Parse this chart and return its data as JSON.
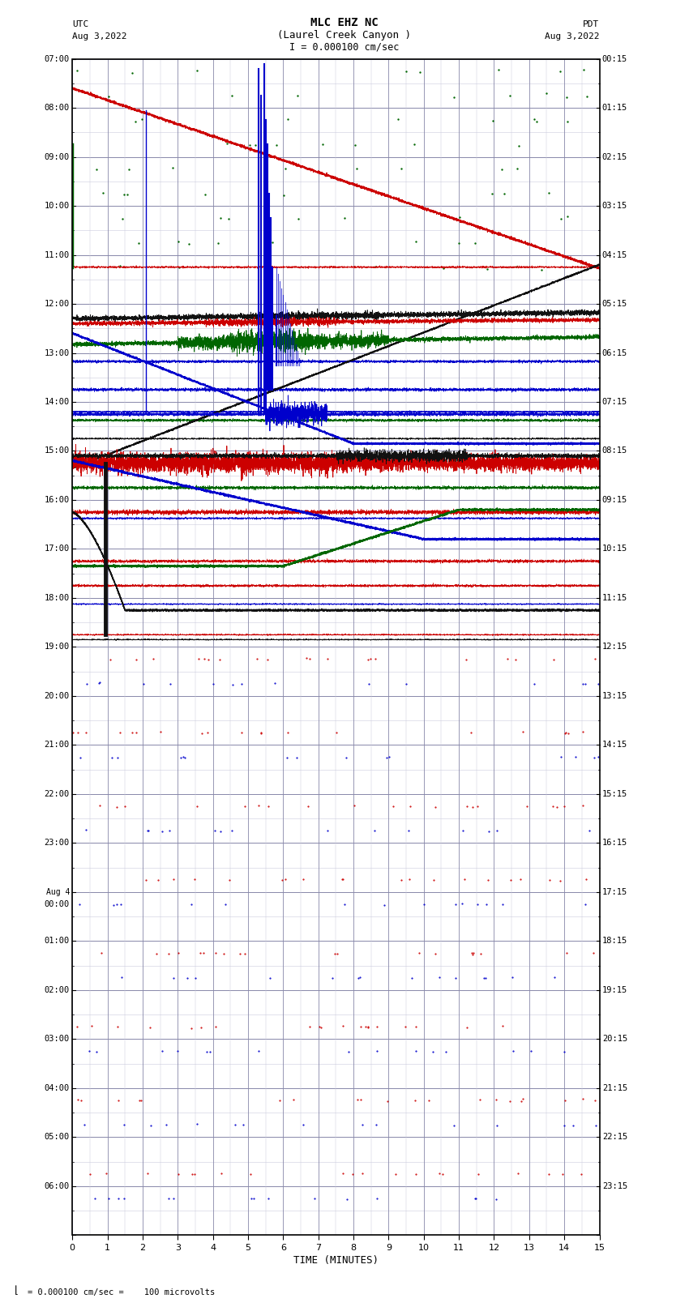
{
  "title_line1": "MLC EHZ NC",
  "title_line2": "(Laurel Creek Canyon )",
  "scale_label": "I = 0.000100 cm/sec",
  "utc_label": "UTC",
  "utc_date": "Aug 3,2022",
  "pdt_label": "PDT",
  "pdt_date": "Aug 3,2022",
  "xlabel": "TIME (MINUTES)",
  "footnote": "= 0.000100 cm/sec =    100 microvolts",
  "xlim": [
    0,
    15
  ],
  "left_times": [
    "07:00",
    "",
    "08:00",
    "",
    "09:00",
    "",
    "10:00",
    "",
    "11:00",
    "",
    "12:00",
    "",
    "13:00",
    "",
    "14:00",
    "",
    "15:00",
    "",
    "16:00",
    "",
    "17:00",
    "",
    "18:00",
    "",
    "19:00",
    "",
    "20:00",
    "",
    "21:00",
    "",
    "22:00",
    "",
    "23:00",
    "",
    "Aug 4\n00:00",
    "",
    "01:00",
    "",
    "02:00",
    "",
    "03:00",
    "",
    "04:00",
    "",
    "05:00",
    "",
    "06:00",
    ""
  ],
  "right_times": [
    "00:15",
    "",
    "01:15",
    "",
    "02:15",
    "",
    "03:15",
    "",
    "04:15",
    "",
    "05:15",
    "",
    "06:15",
    "",
    "07:15",
    "",
    "08:15",
    "",
    "09:15",
    "",
    "10:15",
    "",
    "11:15",
    "",
    "12:15",
    "",
    "13:15",
    "",
    "14:15",
    "",
    "15:15",
    "",
    "16:15",
    "",
    "17:15",
    "",
    "18:15",
    "",
    "19:15",
    "",
    "20:15",
    "",
    "21:15",
    "",
    "22:15",
    "",
    "23:15",
    ""
  ],
  "bg_color": "#ffffff",
  "grid_color_major": "#8888aa",
  "grid_color_minor": "#ccccdd",
  "trace_color_red": "#cc0000",
  "trace_color_blue": "#0000cc",
  "trace_color_green": "#006600",
  "trace_color_black": "#111111"
}
